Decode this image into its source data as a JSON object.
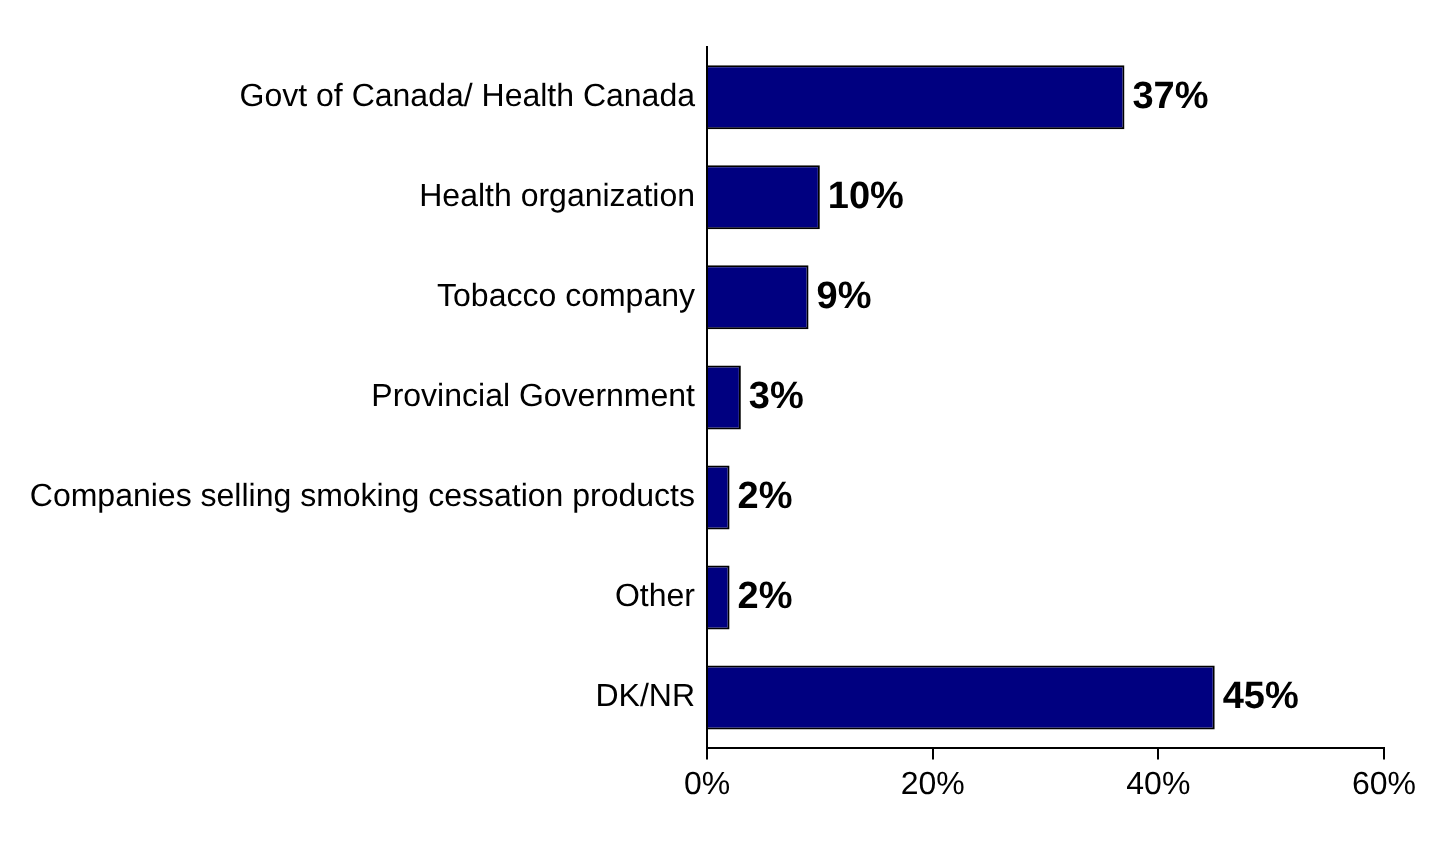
{
  "chart_data": {
    "type": "bar",
    "orientation": "horizontal",
    "categories": [
      "Govt of Canada/ Health Canada",
      "Health organization",
      "Tobacco company",
      "Provincial Government",
      "Companies selling smoking cessation products",
      "Other",
      "DK/NR"
    ],
    "values": [
      37,
      10,
      9,
      3,
      2,
      2,
      45
    ],
    "value_labels": [
      "37%",
      "10%",
      "9%",
      "3%",
      "2%",
      "2%",
      "45%"
    ],
    "color": "#000080",
    "xlim": [
      0,
      60
    ],
    "xticks": [
      {
        "value": 0,
        "label": "0%"
      },
      {
        "value": 20,
        "label": "20%"
      },
      {
        "value": 40,
        "label": "40%"
      },
      {
        "value": 60,
        "label": "60%"
      }
    ],
    "grid": false,
    "legend": false
  }
}
